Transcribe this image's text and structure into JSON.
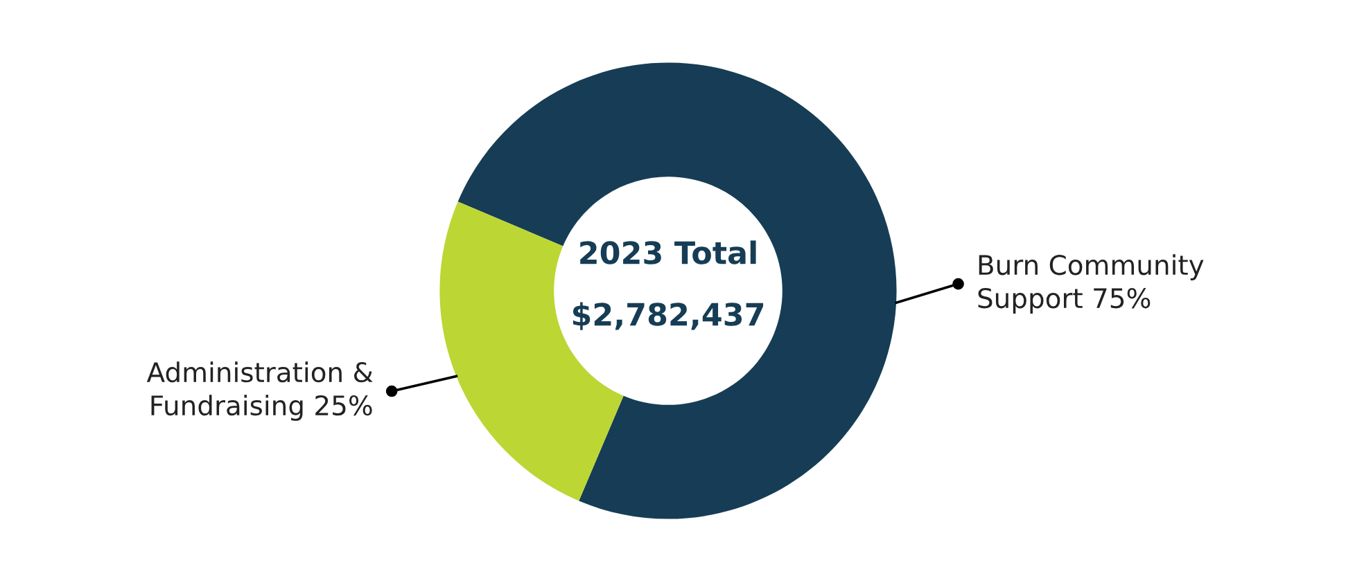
{
  "chart_data": {
    "type": "donut",
    "categories": [
      "Burn Community Support",
      "Administration & Fundraising"
    ],
    "values": [
      75,
      25
    ],
    "colors": [
      "#163d55",
      "#bcd634"
    ],
    "value_labels": [
      "75%",
      "25%"
    ],
    "annotations": [
      "2023 Total",
      "$2,782,437"
    ]
  }
}
